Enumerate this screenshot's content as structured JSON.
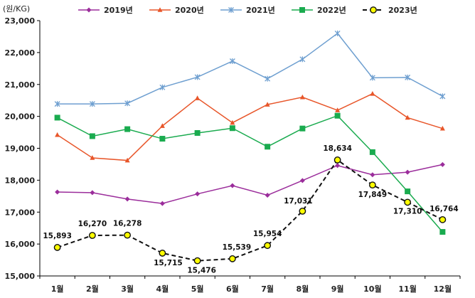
{
  "chart_data": {
    "type": "line",
    "y_unit_label": "(원/KG)",
    "categories": [
      "1월",
      "2월",
      "3월",
      "4월",
      "5월",
      "6월",
      "7월",
      "8월",
      "9월",
      "10월",
      "11월",
      "12월"
    ],
    "ylim": [
      15000,
      23000
    ],
    "y_ticks": [
      15000,
      16000,
      17000,
      18000,
      19000,
      20000,
      21000,
      22000,
      23000
    ],
    "y_tick_labels": [
      "15,000",
      "16,000",
      "17,000",
      "18,000",
      "19,000",
      "20,000",
      "21,000",
      "22,000",
      "23,000"
    ],
    "grid": false,
    "legend_position": "top",
    "series": [
      {
        "name": "2019년",
        "color": "#9B2D9B",
        "marker": "diamond",
        "dashed": false,
        "values": [
          17630,
          17610,
          17410,
          17270,
          17570,
          17830,
          17530,
          17990,
          18460,
          18170,
          18250,
          18490
        ]
      },
      {
        "name": "2020년",
        "color": "#E8562A",
        "marker": "triangle",
        "dashed": false,
        "values": [
          19420,
          18700,
          18620,
          19700,
          20570,
          19800,
          20370,
          20600,
          20190,
          20710,
          19960,
          19620
        ]
      },
      {
        "name": "2021년",
        "color": "#6E9FD0",
        "marker": "asterisk",
        "dashed": false,
        "values": [
          20390,
          20390,
          20410,
          20910,
          21230,
          21730,
          21180,
          21790,
          22600,
          21210,
          21220,
          20630
        ]
      },
      {
        "name": "2022년",
        "color": "#1AAB4F",
        "marker": "square",
        "dashed": false,
        "values": [
          19960,
          19380,
          19600,
          19300,
          19480,
          19630,
          19050,
          19620,
          20020,
          18880,
          17650,
          16380
        ]
      },
      {
        "name": "2023년",
        "color": "#111111",
        "marker": "circle",
        "dashed": true,
        "values": [
          15893,
          16270,
          16278,
          15715,
          15476,
          15539,
          15954,
          17031,
          18634,
          17849,
          17310,
          16764
        ],
        "labels": [
          "15,893",
          "16,270",
          "16,278",
          "15,715",
          "15,476",
          "15,539",
          "15,954",
          "17,031",
          "18,634",
          "17,849",
          "17,310",
          "16,764"
        ]
      }
    ]
  }
}
